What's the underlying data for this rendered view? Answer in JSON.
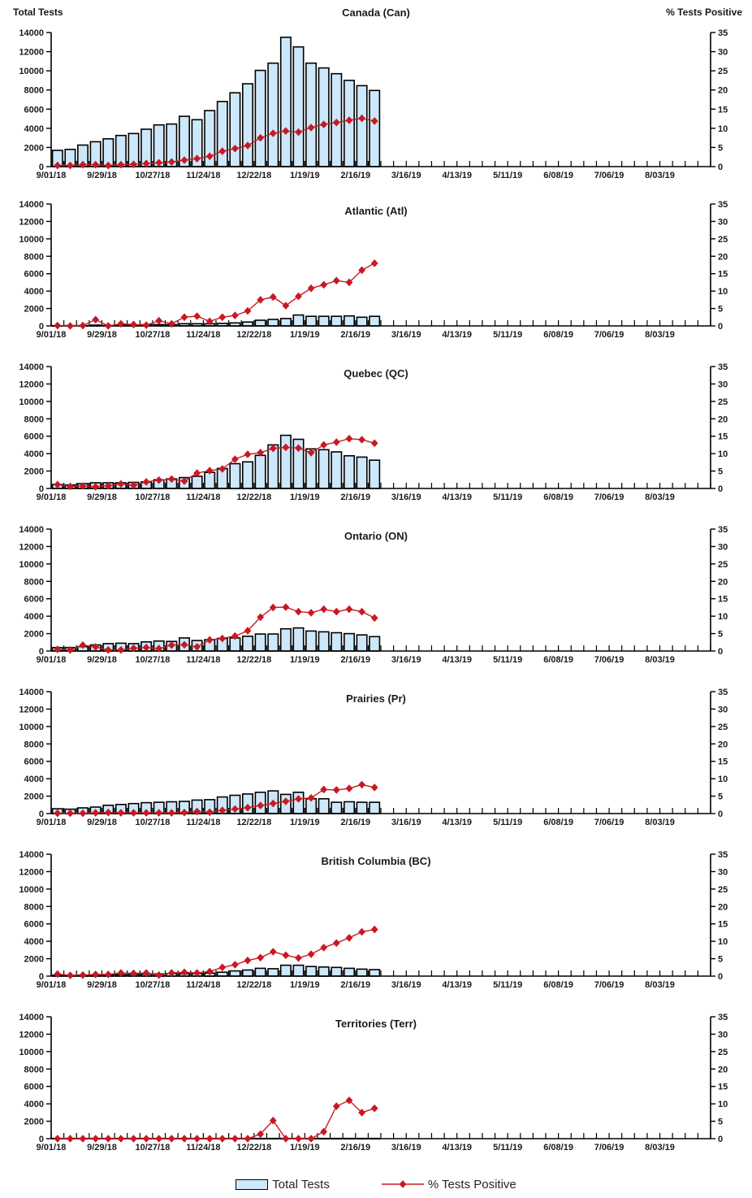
{
  "header": {
    "left_axis_title": "Total Tests",
    "right_axis_title": "% Tests Positive"
  },
  "axes": {
    "x_tick_labels": [
      "9/01/18",
      "9/29/18",
      "10/27/18",
      "11/24/18",
      "12/22/18",
      "1/19/19",
      "2/16/19",
      "3/16/19",
      "4/13/19",
      "5/11/19",
      "6/08/19",
      "7/06/19",
      "8/03/19"
    ],
    "x_total_weeks": 52,
    "y_left": {
      "min": 0,
      "max": 14000,
      "step": 2000,
      "labels": [
        "0",
        "2000",
        "4000",
        "6000",
        "8000",
        "10000",
        "12000",
        "14000"
      ]
    },
    "y_right": {
      "min": 0,
      "max": 35,
      "step": 5,
      "labels": [
        "0",
        "5",
        "10",
        "15",
        "20",
        "25",
        "30",
        "35"
      ]
    }
  },
  "legend": {
    "items": [
      {
        "label": "Total Tests",
        "swatch": "bar"
      },
      {
        "label": "% Tests Positive",
        "swatch": "line-diamond"
      }
    ]
  },
  "colors": {
    "bar_fill": "#CDE8FA",
    "bar_stroke": "#000000",
    "line": "#C81923",
    "axis": "#000000",
    "text": "#1A1A1A",
    "background": "#FFFFFF"
  },
  "chart_data": [
    {
      "type": "bar+line",
      "title": "Canada (Can)",
      "ylim_left": [
        0,
        14000
      ],
      "ylim_right": [
        0,
        35
      ],
      "categories": [
        "9/01/18",
        "9/08/18",
        "9/15/18",
        "9/22/18",
        "9/29/18",
        "10/06/18",
        "10/13/18",
        "10/20/18",
        "10/27/18",
        "11/03/18",
        "11/10/18",
        "11/17/18",
        "11/24/18",
        "12/01/18",
        "12/08/18",
        "12/15/18",
        "12/22/18",
        "12/29/18",
        "1/05/19",
        "1/12/19",
        "1/19/19",
        "1/26/19",
        "2/02/19",
        "2/09/19",
        "2/16/19",
        "2/23/19"
      ],
      "series": [
        {
          "name": "Total Tests",
          "type": "bar",
          "axis": "left",
          "values": [
            1700,
            1800,
            2250,
            2600,
            2900,
            3250,
            3450,
            3900,
            4350,
            4450,
            5250,
            4900,
            5850,
            6800,
            7700,
            8650,
            10050,
            10800,
            13500,
            12500,
            10800,
            10300,
            9700,
            9000,
            8450,
            7950
          ]
        },
        {
          "name": "% Tests Positive",
          "type": "line",
          "axis": "right",
          "values": [
            0.3,
            0.3,
            0.5,
            0.5,
            0.3,
            0.5,
            0.6,
            0.8,
            1.0,
            1.2,
            1.7,
            2.1,
            2.7,
            4.0,
            4.7,
            5.5,
            7.5,
            8.7,
            9.3,
            9.0,
            10.2,
            11.0,
            11.5,
            12.1,
            12.6,
            11.9
          ]
        }
      ]
    },
    {
      "type": "bar+line",
      "title": "Atlantic (Atl)",
      "ylim_left": [
        0,
        14000
      ],
      "ylim_right": [
        0,
        35
      ],
      "categories": [
        "9/01/18",
        "9/08/18",
        "9/15/18",
        "9/22/18",
        "9/29/18",
        "10/06/18",
        "10/13/18",
        "10/20/18",
        "10/27/18",
        "11/03/18",
        "11/10/18",
        "11/17/18",
        "11/24/18",
        "12/01/18",
        "12/08/18",
        "12/15/18",
        "12/22/18",
        "12/29/18",
        "1/05/19",
        "1/12/19",
        "1/19/19",
        "1/26/19",
        "2/02/19",
        "2/09/19",
        "2/16/19",
        "2/23/19"
      ],
      "series": [
        {
          "name": "Total Tests",
          "type": "bar",
          "axis": "left",
          "values": [
            30,
            40,
            40,
            90,
            50,
            90,
            90,
            140,
            150,
            150,
            250,
            250,
            250,
            300,
            350,
            450,
            650,
            750,
            850,
            1250,
            1100,
            1100,
            1100,
            1150,
            1000,
            1100
          ]
        },
        {
          "name": "% Tests Positive",
          "type": "line",
          "axis": "right",
          "values": [
            0.1,
            0,
            0.1,
            1.8,
            0,
            0.6,
            0.4,
            0.2,
            1.5,
            0.6,
            2.5,
            2.8,
            1.3,
            2.5,
            3.0,
            4.3,
            7.5,
            8.3,
            5.8,
            8.5,
            10.8,
            11.8,
            13.0,
            12.5,
            16.0,
            18.0
          ]
        }
      ]
    },
    {
      "type": "bar+line",
      "title": "Quebec (QC)",
      "ylim_left": [
        0,
        14000
      ],
      "ylim_right": [
        0,
        35
      ],
      "categories": [
        "9/01/18",
        "9/08/18",
        "9/15/18",
        "9/22/18",
        "9/29/18",
        "10/06/18",
        "10/13/18",
        "10/20/18",
        "10/27/18",
        "11/03/18",
        "11/10/18",
        "11/17/18",
        "11/24/18",
        "12/01/18",
        "12/08/18",
        "12/15/18",
        "12/22/18",
        "12/29/18",
        "1/05/19",
        "1/12/19",
        "1/19/19",
        "1/26/19",
        "2/02/19",
        "2/09/19",
        "2/16/19",
        "2/23/19"
      ],
      "series": [
        {
          "name": "Total Tests",
          "type": "bar",
          "axis": "left",
          "values": [
            450,
            400,
            550,
            650,
            650,
            650,
            700,
            750,
            1000,
            1100,
            1250,
            1400,
            1850,
            2300,
            2850,
            3050,
            3800,
            5000,
            6100,
            5650,
            4550,
            4450,
            4200,
            3750,
            3600,
            3250
          ]
        },
        {
          "name": "% Tests Positive",
          "type": "line",
          "axis": "right",
          "values": [
            1.1,
            0.6,
            0.7,
            0.5,
            0.8,
            1.3,
            0.9,
            1.9,
            2.4,
            2.7,
            2.1,
            4.4,
            5.1,
            5.6,
            8.4,
            9.8,
            10.3,
            11.5,
            11.8,
            11.6,
            10.3,
            12.5,
            13.3,
            14.3,
            14.0,
            13.0
          ]
        }
      ]
    },
    {
      "type": "bar+line",
      "title": "Ontario (ON)",
      "ylim_left": [
        0,
        14000
      ],
      "ylim_right": [
        0,
        35
      ],
      "categories": [
        "9/01/18",
        "9/08/18",
        "9/15/18",
        "9/22/18",
        "9/29/18",
        "10/06/18",
        "10/13/18",
        "10/20/18",
        "10/27/18",
        "11/03/18",
        "11/10/18",
        "11/17/18",
        "11/24/18",
        "12/01/18",
        "12/08/18",
        "12/15/18",
        "12/22/18",
        "12/29/18",
        "1/05/19",
        "1/12/19",
        "1/19/19",
        "1/26/19",
        "2/02/19",
        "2/09/19",
        "2/16/19",
        "2/23/19"
      ],
      "series": [
        {
          "name": "Total Tests",
          "type": "bar",
          "axis": "left",
          "values": [
            400,
            400,
            500,
            700,
            850,
            900,
            850,
            1050,
            1150,
            1100,
            1500,
            1200,
            1300,
            1450,
            1500,
            1700,
            1950,
            1950,
            2550,
            2650,
            2300,
            2200,
            2100,
            2000,
            1850,
            1650
          ]
        },
        {
          "name": "% Tests Positive",
          "type": "line",
          "axis": "right",
          "values": [
            0.5,
            0.3,
            1.7,
            1.2,
            0.3,
            0.3,
            0.8,
            1.0,
            0.7,
            1.7,
            1.8,
            1.2,
            3.2,
            3.6,
            4.3,
            5.8,
            9.7,
            12.5,
            12.6,
            11.3,
            11.0,
            12.0,
            11.3,
            12.0,
            11.3,
            9.5
          ]
        }
      ]
    },
    {
      "type": "bar+line",
      "title": "Prairies (Pr)",
      "ylim_left": [
        0,
        14000
      ],
      "ylim_right": [
        0,
        35
      ],
      "categories": [
        "9/01/18",
        "9/08/18",
        "9/15/18",
        "9/22/18",
        "9/29/18",
        "10/06/18",
        "10/13/18",
        "10/20/18",
        "10/27/18",
        "11/03/18",
        "11/10/18",
        "11/17/18",
        "11/24/18",
        "12/01/18",
        "12/08/18",
        "12/15/18",
        "12/22/18",
        "12/29/18",
        "1/05/19",
        "1/12/19",
        "1/19/19",
        "1/26/19",
        "2/02/19",
        "2/09/19",
        "2/16/19",
        "2/23/19"
      ],
      "series": [
        {
          "name": "Total Tests",
          "type": "bar",
          "axis": "left",
          "values": [
            550,
            500,
            650,
            750,
            950,
            1050,
            1150,
            1250,
            1300,
            1350,
            1400,
            1550,
            1600,
            1900,
            2100,
            2250,
            2450,
            2600,
            2200,
            2450,
            1700,
            1700,
            1300,
            1350,
            1300,
            1300
          ]
        },
        {
          "name": "% Tests Positive",
          "type": "line",
          "axis": "right",
          "values": [
            0.1,
            0.1,
            0.1,
            0.2,
            0.3,
            0.2,
            0.2,
            0.2,
            0.2,
            0.2,
            0.3,
            0.6,
            0.4,
            0.9,
            1.3,
            1.7,
            2.3,
            2.9,
            3.5,
            4.2,
            4.5,
            6.9,
            6.8,
            7.2,
            8.3,
            7.5
          ]
        }
      ]
    },
    {
      "type": "bar+line",
      "title": "British Columbia (BC)",
      "ylim_left": [
        0,
        14000
      ],
      "ylim_right": [
        0,
        35
      ],
      "categories": [
        "9/01/18",
        "9/08/18",
        "9/15/18",
        "9/22/18",
        "9/29/18",
        "10/06/18",
        "10/13/18",
        "10/20/18",
        "10/27/18",
        "11/03/18",
        "11/10/18",
        "11/17/18",
        "11/24/18",
        "12/01/18",
        "12/08/18",
        "12/15/18",
        "12/22/18",
        "12/29/18",
        "1/05/19",
        "1/12/19",
        "1/19/19",
        "1/26/19",
        "2/02/19",
        "2/09/19",
        "2/16/19",
        "2/23/19"
      ],
      "series": [
        {
          "name": "Total Tests",
          "type": "bar",
          "axis": "left",
          "values": [
            100,
            80,
            120,
            150,
            150,
            180,
            200,
            220,
            250,
            300,
            280,
            300,
            350,
            450,
            600,
            700,
            900,
            850,
            1250,
            1250,
            1100,
            1050,
            1000,
            900,
            800,
            750
          ]
        },
        {
          "name": "% Tests Positive",
          "type": "line",
          "axis": "right",
          "values": [
            0.6,
            0.2,
            0.3,
            0.5,
            0.5,
            0.9,
            0.8,
            0.9,
            0.3,
            0.9,
            1.1,
            0.9,
            1.3,
            2.5,
            3.3,
            4.5,
            5.3,
            7.0,
            6.0,
            5.2,
            6.3,
            8.2,
            9.5,
            11.0,
            12.7,
            13.4
          ]
        }
      ]
    },
    {
      "type": "bar+line",
      "title": "Territories (Terr)",
      "ylim_left": [
        0,
        14000
      ],
      "ylim_right": [
        0,
        35
      ],
      "categories": [
        "9/01/18",
        "9/08/18",
        "9/15/18",
        "9/22/18",
        "9/29/18",
        "10/06/18",
        "10/13/18",
        "10/20/18",
        "10/27/18",
        "11/03/18",
        "11/10/18",
        "11/17/18",
        "11/24/18",
        "12/01/18",
        "12/08/18",
        "12/15/18",
        "12/22/18",
        "12/29/18",
        "1/05/19",
        "1/12/19",
        "1/19/19",
        "1/26/19",
        "2/02/19",
        "2/09/19",
        "2/16/19",
        "2/23/19"
      ],
      "series": [
        {
          "name": "Total Tests",
          "type": "bar",
          "axis": "left",
          "values": [
            30,
            30,
            30,
            30,
            30,
            30,
            30,
            30,
            30,
            30,
            30,
            30,
            30,
            30,
            30,
            30,
            30,
            30,
            30,
            30,
            30,
            30,
            30,
            30,
            30,
            30
          ]
        },
        {
          "name": "% Tests Positive",
          "type": "line",
          "axis": "right",
          "values": [
            0,
            0,
            0,
            0,
            0,
            0,
            0,
            0,
            0,
            0,
            0,
            0,
            0,
            0,
            0,
            0,
            1.3,
            5.2,
            0,
            0,
            0,
            2.0,
            9.3,
            11.0,
            7.5,
            8.7
          ]
        }
      ]
    }
  ]
}
